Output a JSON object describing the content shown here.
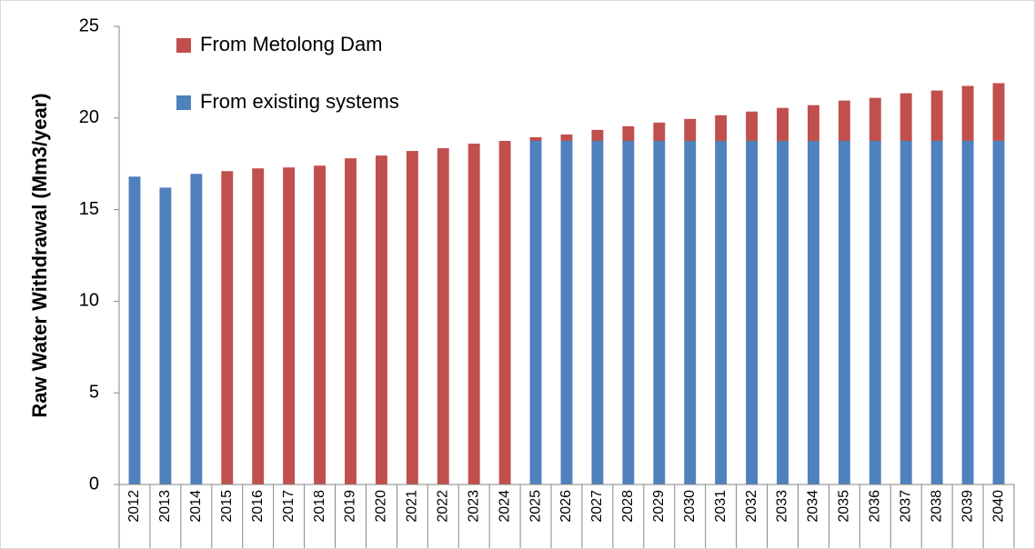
{
  "chart_data": {
    "type": "stacked_bar",
    "y_label": "Raw Water Withdrawal (Mm3/year)",
    "categories": [
      "2012",
      "2013",
      "2014",
      "2015",
      "2016",
      "2017",
      "2018",
      "2019",
      "2020",
      "2021",
      "2022",
      "2023",
      "2024",
      "2025",
      "2026",
      "2027",
      "2028",
      "2029",
      "2030",
      "2031",
      "2032",
      "2033",
      "2034",
      "2035",
      "2036",
      "2037",
      "2038",
      "2039",
      "2040"
    ],
    "series": [
      {
        "name": "From existing systems",
        "color": "#4f81bd",
        "values": [
          16.8,
          16.2,
          16.95,
          0,
          0,
          0,
          0,
          0,
          0,
          0,
          0,
          0,
          0,
          18.75,
          18.75,
          18.75,
          18.75,
          18.75,
          18.75,
          18.75,
          18.75,
          18.75,
          18.75,
          18.75,
          18.75,
          18.75,
          18.75,
          18.75,
          18.75
        ]
      },
      {
        "name": "From Metolong Dam",
        "color": "#c0504d",
        "values": [
          0,
          0,
          0,
          17.1,
          17.25,
          17.3,
          17.4,
          17.8,
          17.95,
          18.2,
          18.35,
          18.6,
          18.75,
          0.2,
          0.35,
          0.6,
          0.8,
          1.0,
          1.2,
          1.4,
          1.6,
          1.8,
          1.95,
          2.2,
          2.35,
          2.6,
          2.75,
          3.0,
          3.15
        ]
      }
    ],
    "ylim": [
      0,
      25
    ],
    "yticks": [
      0,
      5,
      10,
      15,
      20,
      25
    ],
    "grid": false,
    "legend": "top-left"
  }
}
